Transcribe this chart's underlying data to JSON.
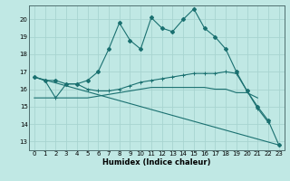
{
  "xlabel": "Humidex (Indice chaleur)",
  "xlim": [
    -0.5,
    23.5
  ],
  "ylim": [
    12.5,
    20.8
  ],
  "yticks": [
    13,
    14,
    15,
    16,
    17,
    18,
    19,
    20
  ],
  "xticks": [
    0,
    1,
    2,
    3,
    4,
    5,
    6,
    7,
    8,
    9,
    10,
    11,
    12,
    13,
    14,
    15,
    16,
    17,
    18,
    19,
    20,
    21,
    22,
    23
  ],
  "bg_color": "#c0e8e4",
  "grid_color": "#a8d4d0",
  "line_color": "#1a7070",
  "line1_y": [
    16.7,
    16.5,
    16.5,
    16.3,
    16.3,
    16.5,
    17.0,
    18.3,
    19.8,
    18.8,
    18.3,
    20.1,
    19.5,
    19.3,
    20.0,
    20.6,
    19.5,
    19.0,
    18.3,
    17.0,
    15.9,
    15.0,
    14.2,
    12.8
  ],
  "line2_y": [
    16.7,
    16.5,
    15.5,
    16.3,
    16.3,
    16.0,
    15.9,
    15.9,
    16.0,
    16.2,
    16.4,
    16.5,
    16.6,
    16.7,
    16.8,
    16.9,
    16.9,
    16.9,
    17.0,
    16.9,
    15.9,
    14.9,
    14.1,
    null
  ],
  "line3_endpoints_x": [
    0,
    23
  ],
  "line3_endpoints_y": [
    16.7,
    12.8
  ],
  "line4_y": [
    15.5,
    15.5,
    15.5,
    15.5,
    15.5,
    15.5,
    15.6,
    15.7,
    15.8,
    15.9,
    16.0,
    16.1,
    16.1,
    16.1,
    16.1,
    16.1,
    16.1,
    16.0,
    16.0,
    15.8,
    15.8,
    15.5,
    null,
    null
  ]
}
